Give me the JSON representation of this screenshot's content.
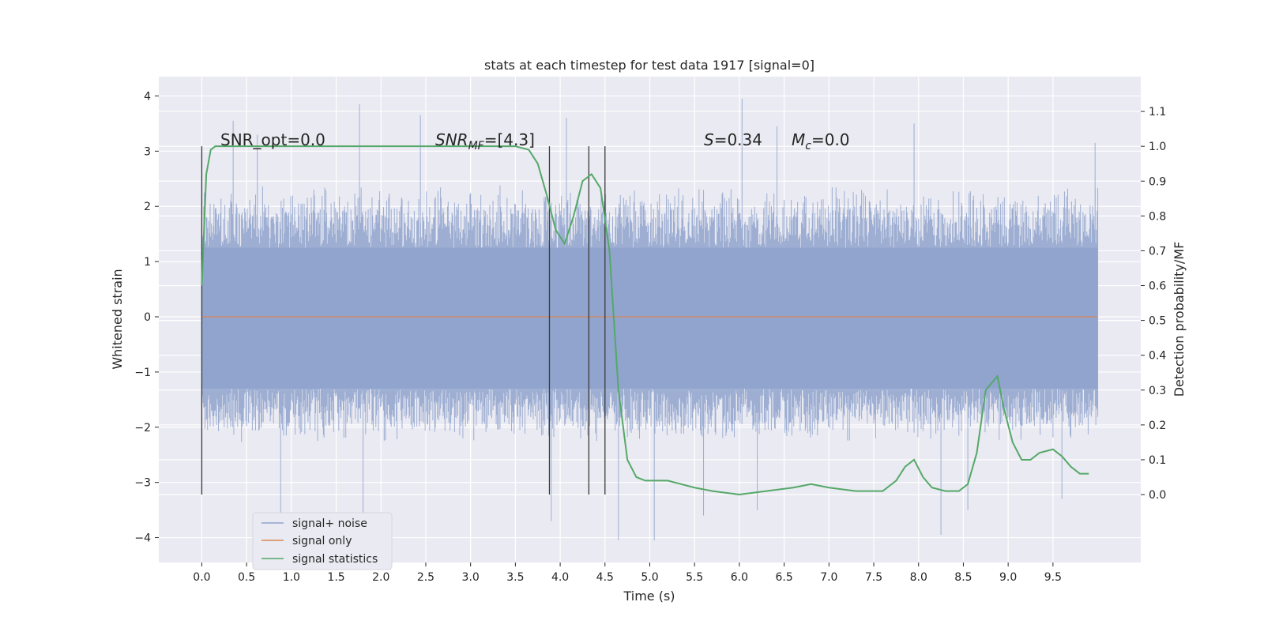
{
  "chart_data": {
    "type": "line",
    "title": "stats at each timestep for test data 1917 [signal=0]",
    "xlabel": "Time (s)",
    "ylabel": "Whitened strain",
    "y2label": "Detection probability/MF",
    "xlim": [
      -0.48,
      10.48
    ],
    "ylim": [
      -4.45,
      4.35
    ],
    "y2lim": [
      -0.195,
      1.2
    ],
    "x_ticks": [
      0.0,
      0.5,
      1.0,
      1.5,
      2.0,
      2.5,
      3.0,
      3.5,
      4.0,
      4.5,
      5.0,
      5.5,
      6.0,
      6.5,
      7.0,
      7.5,
      8.0,
      8.5,
      9.0,
      9.5
    ],
    "x_tick_labels": [
      "0.0",
      "0.5",
      "1.0",
      "1.5",
      "2.0",
      "2.5",
      "3.0",
      "3.5",
      "4.0",
      "4.5",
      "5.0",
      "5.5",
      "6.0",
      "6.5",
      "7.0",
      "7.5",
      "8.0",
      "8.5",
      "9.0",
      "9.5"
    ],
    "y_ticks": [
      -4,
      -3,
      -2,
      -1,
      0,
      1,
      2,
      3,
      4
    ],
    "y_tick_labels": [
      "−4",
      "−3",
      "−2",
      "−1",
      "0",
      "1",
      "2",
      "3",
      "4"
    ],
    "y2_ticks": [
      0.0,
      0.1,
      0.2,
      0.3,
      0.4,
      0.5,
      0.6,
      0.7,
      0.8,
      0.9,
      1.0,
      1.1
    ],
    "y2_tick_labels": [
      "0.0",
      "0.1",
      "0.2",
      "0.3",
      "0.4",
      "0.5",
      "0.6",
      "0.7",
      "0.8",
      "0.9",
      "1.0",
      "1.1"
    ],
    "grid": true,
    "legend_position": "lower-left",
    "colors": {
      "background": "#eaeaf2",
      "grid": "#ffffff",
      "signal_noise": "#8fa3cc",
      "signal_only": "#dd8452",
      "statistics": "#55a868",
      "marker": "#3a3a3a"
    },
    "series": [
      {
        "name": "signal+ noise",
        "kind": "noise_band",
        "x_range": [
          0.0,
          10.0
        ],
        "inner_band": [
          -1.3,
          1.25
        ],
        "typical_extent": [
          -2.3,
          2.4
        ],
        "peaks_high": [
          [
            0.35,
            3.55
          ],
          [
            0.62,
            3.3
          ],
          [
            1.76,
            3.85
          ],
          [
            2.44,
            3.65
          ],
          [
            4.07,
            3.6
          ],
          [
            6.03,
            3.95
          ],
          [
            6.42,
            3.45
          ],
          [
            7.95,
            3.5
          ],
          [
            9.97,
            3.15
          ]
        ],
        "peaks_low": [
          [
            0.88,
            -3.6
          ],
          [
            1.8,
            -4.1
          ],
          [
            3.9,
            -3.7
          ],
          [
            4.65,
            -4.05
          ],
          [
            5.05,
            -4.05
          ],
          [
            5.6,
            -3.6
          ],
          [
            6.2,
            -3.5
          ],
          [
            8.25,
            -3.95
          ],
          [
            8.55,
            -3.5
          ],
          [
            9.6,
            -3.3
          ]
        ]
      },
      {
        "name": "signal only",
        "kind": "line",
        "x": [
          0.0,
          10.0
        ],
        "y": [
          0.0,
          0.0
        ]
      },
      {
        "name": "signal statistics",
        "kind": "line",
        "axis": "right",
        "x": [
          0.0,
          0.05,
          0.1,
          0.15,
          0.2,
          0.3,
          0.5,
          1.0,
          2.0,
          3.0,
          3.5,
          3.65,
          3.75,
          3.85,
          3.95,
          4.05,
          4.15,
          4.25,
          4.35,
          4.45,
          4.55,
          4.65,
          4.75,
          4.85,
          4.95,
          5.05,
          5.2,
          5.35,
          5.5,
          5.7,
          6.0,
          6.3,
          6.6,
          6.8,
          7.0,
          7.3,
          7.6,
          7.75,
          7.85,
          7.95,
          8.05,
          8.15,
          8.3,
          8.45,
          8.55,
          8.65,
          8.75,
          8.88,
          8.95,
          9.05,
          9.15,
          9.25,
          9.35,
          9.5,
          9.6,
          9.7,
          9.8,
          9.9
        ],
        "y": [
          0.6,
          0.92,
          0.99,
          1.0,
          1.0,
          1.0,
          1.0,
          1.0,
          1.0,
          1.0,
          1.0,
          0.99,
          0.95,
          0.86,
          0.76,
          0.72,
          0.8,
          0.9,
          0.92,
          0.88,
          0.7,
          0.3,
          0.1,
          0.05,
          0.04,
          0.04,
          0.04,
          0.03,
          0.02,
          0.01,
          0.0,
          0.01,
          0.02,
          0.03,
          0.02,
          0.01,
          0.01,
          0.04,
          0.08,
          0.1,
          0.05,
          0.02,
          0.01,
          0.01,
          0.03,
          0.12,
          0.3,
          0.34,
          0.25,
          0.15,
          0.1,
          0.1,
          0.12,
          0.13,
          0.11,
          0.08,
          0.06,
          0.06
        ]
      }
    ],
    "vertical_markers": [
      0.0,
      3.88,
      4.32,
      4.5
    ],
    "annotations": [
      {
        "text": "SNR_opt=0.0"
      },
      {
        "text": "SNR_MF=[4.3]"
      },
      {
        "text": "S=0.34"
      },
      {
        "text": "M_c=0.0"
      }
    ]
  }
}
